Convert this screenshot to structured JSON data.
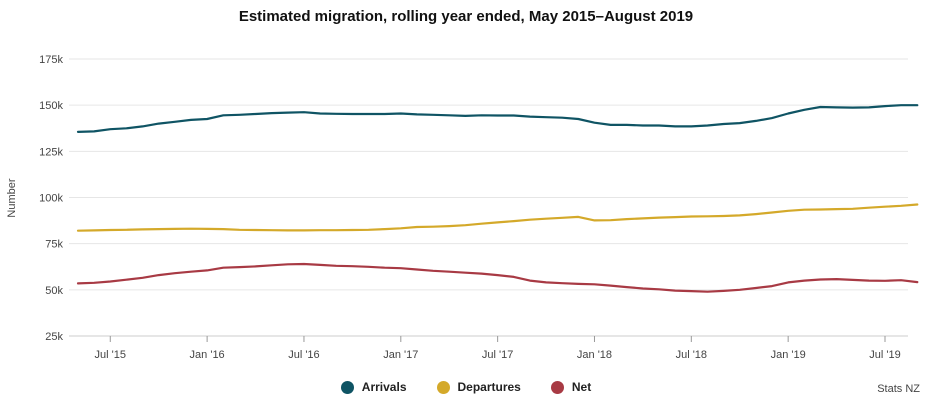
{
  "chart_data": {
    "type": "line",
    "title": "Estimated migration, rolling year ended, May 2015–August 2019",
    "ylabel": "Number",
    "xlabel": "",
    "ylim": [
      25000,
      175000
    ],
    "y_ticks": [
      {
        "value": 25000,
        "label": "25k"
      },
      {
        "value": 50000,
        "label": "50k"
      },
      {
        "value": 75000,
        "label": "75k"
      },
      {
        "value": 100000,
        "label": "100k"
      },
      {
        "value": 125000,
        "label": "125k"
      },
      {
        "value": 150000,
        "label": "150k"
      },
      {
        "value": 175000,
        "label": "175k"
      }
    ],
    "x_start": "2015-05",
    "x_ticks": [
      {
        "month_index": 2,
        "label": "Jul '15"
      },
      {
        "month_index": 8,
        "label": "Jan '16"
      },
      {
        "month_index": 14,
        "label": "Jul '16"
      },
      {
        "month_index": 20,
        "label": "Jan '17"
      },
      {
        "month_index": 26,
        "label": "Jul '17"
      },
      {
        "month_index": 32,
        "label": "Jan '18"
      },
      {
        "month_index": 38,
        "label": "Jul '18"
      },
      {
        "month_index": 44,
        "label": "Jan '19"
      },
      {
        "month_index": 50,
        "label": "Jul '19"
      }
    ],
    "legend_position": "bottom",
    "series": [
      {
        "name": "Arrivals",
        "color": "#0f5464",
        "values": [
          135500,
          135800,
          137000,
          137500,
          138500,
          140000,
          141000,
          142000,
          142500,
          144500,
          144800,
          145200,
          145700,
          146000,
          146200,
          145500,
          145300,
          145200,
          145200,
          145200,
          145500,
          145000,
          144800,
          144500,
          144200,
          144500,
          144400,
          144400,
          143800,
          143500,
          143200,
          142500,
          140500,
          139300,
          139300,
          139000,
          139000,
          138500,
          138500,
          139000,
          139800,
          140300,
          141500,
          143000,
          145500,
          147500,
          149000,
          148800,
          148700,
          148800,
          149500,
          150000,
          150000
        ]
      },
      {
        "name": "Departures",
        "color": "#d4a92a",
        "values": [
          82000,
          82200,
          82400,
          82500,
          82700,
          82900,
          83000,
          83100,
          83000,
          82900,
          82500,
          82400,
          82300,
          82200,
          82200,
          82300,
          82300,
          82400,
          82500,
          82900,
          83300,
          84000,
          84200,
          84500,
          85000,
          85800,
          86500,
          87200,
          88000,
          88500,
          89000,
          89500,
          87600,
          87700,
          88300,
          88700,
          89100,
          89400,
          89700,
          89800,
          90000,
          90300,
          91000,
          91900,
          92800,
          93400,
          93500,
          93700,
          93900,
          94500,
          95000,
          95500,
          96200
        ]
      },
      {
        "name": "Net",
        "color": "#a83a44",
        "values": [
          53500,
          53800,
          54500,
          55500,
          56500,
          58000,
          59000,
          59800,
          60500,
          62000,
          62300,
          62700,
          63300,
          63800,
          64000,
          63500,
          63000,
          62800,
          62500,
          62000,
          61700,
          61000,
          60300,
          59800,
          59300,
          58800,
          58000,
          57000,
          55000,
          54000,
          53600,
          53200,
          53000,
          52300,
          51500,
          50700,
          50300,
          49600,
          49300,
          49000,
          49400,
          50000,
          51000,
          52000,
          54000,
          55000,
          55600,
          55800,
          55400,
          55000,
          54900,
          55200,
          54200
        ]
      }
    ],
    "credit": "Stats NZ"
  }
}
